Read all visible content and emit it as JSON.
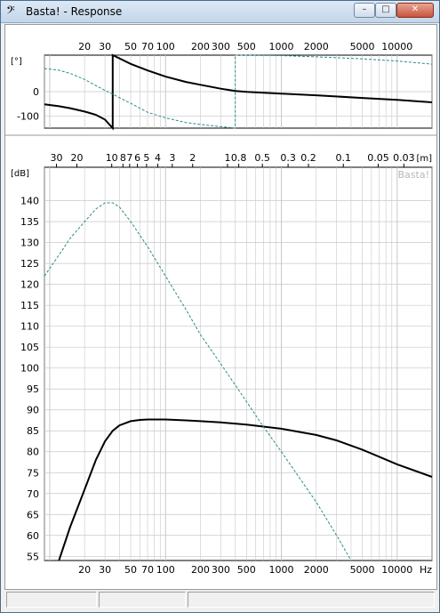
{
  "window": {
    "title": "Basta! - Response",
    "app_icon": "bass-clef-icon",
    "min_label": "–",
    "max_label": "□",
    "close_label": "✕"
  },
  "watermark": "Basta!",
  "status": {
    "panes": [
      "",
      "",
      ""
    ]
  },
  "colors": {
    "background": "#ffffff",
    "grid": "#c8c8c8",
    "axis": "#000000",
    "solid": "#000000",
    "dashed": "#2a8a8a"
  },
  "chart_data": [
    {
      "type": "line",
      "title": "",
      "ylabel": "[°]",
      "xscale": "log",
      "xlim": [
        9,
        20000
      ],
      "ylim": [
        -150,
        150
      ],
      "x_ticks": [
        20,
        30,
        50,
        70,
        100,
        200,
        300,
        500,
        1000,
        2000,
        5000,
        10000
      ],
      "x_tick_labels": [
        "20",
        "30",
        "50",
        "70",
        "100",
        "200",
        "300",
        "500",
        "1000",
        "2000",
        "5000",
        "10000"
      ],
      "y_ticks": [
        0,
        -100
      ],
      "y_tick_labels": [
        "0",
        "-100"
      ],
      "series": [
        {
          "style": "solid",
          "x": [
            9,
            12,
            15,
            20,
            25,
            30,
            35,
            35,
            40,
            50,
            70,
            100,
            150,
            200,
            300,
            400,
            500,
            1000,
            2000,
            5000,
            10000,
            20000
          ],
          "y": [
            -52,
            -60,
            -68,
            -82,
            -95,
            -115,
            -150,
            150,
            137,
            114,
            87,
            62,
            40,
            28,
            12,
            3,
            -1,
            -8,
            -15,
            -26,
            -34,
            -44
          ]
        },
        {
          "style": "dashed",
          "x": [
            9,
            12,
            15,
            20,
            25,
            30,
            35,
            40,
            50,
            70,
            100,
            150,
            200,
            300,
            400,
            400,
            500,
            1000,
            2000,
            5000,
            10000,
            20000
          ],
          "y": [
            95,
            88,
            75,
            50,
            25,
            5,
            -10,
            -25,
            -48,
            -85,
            -108,
            -127,
            -135,
            -144,
            -150,
            150,
            150,
            148,
            143,
            135,
            126,
            113
          ]
        }
      ]
    },
    {
      "type": "line",
      "title": "",
      "ylabel": "[dB]",
      "xlabel": "Hz",
      "top_axis_label": "[m]",
      "xscale": "log",
      "xlim": [
        9,
        20000
      ],
      "ylim": [
        54,
        148
      ],
      "x_ticks": [
        20,
        30,
        50,
        70,
        100,
        200,
        300,
        500,
        1000,
        2000,
        5000,
        10000
      ],
      "x_tick_labels": [
        "20",
        "30",
        "50",
        "70",
        "100",
        "200",
        "300",
        "500",
        "1000",
        "2000",
        "5000",
        "10000"
      ],
      "y_ticks": [
        55,
        60,
        65,
        70,
        75,
        80,
        85,
        90,
        95,
        100,
        105,
        110,
        115,
        120,
        125,
        130,
        135,
        140
      ],
      "y_tick_labels": [
        "55",
        "60",
        "65",
        "70",
        "75",
        "80",
        "85",
        "90",
        "95",
        "100",
        "105",
        "110",
        "115",
        "120",
        "125",
        "130",
        "135",
        "140"
      ],
      "top_ticks_m": [
        30,
        20,
        10,
        8,
        7,
        6,
        5,
        4,
        3,
        2,
        1,
        0.8,
        0.5,
        0.3,
        0.2,
        0.1,
        0.05,
        0.03
      ],
      "top_tick_labels": [
        "30",
        "20",
        "10",
        "8",
        "7",
        "6",
        "5",
        "4",
        "3",
        "2",
        "1",
        "0.8",
        "0.5",
        "0.3",
        "0.2",
        "0.1",
        "0.05",
        "0.03"
      ],
      "series": [
        {
          "style": "solid",
          "x": [
            12,
            15,
            20,
            25,
            30,
            35,
            40,
            50,
            60,
            70,
            100,
            150,
            200,
            300,
            500,
            1000,
            2000,
            3000,
            5000,
            10000,
            20000
          ],
          "y": [
            54,
            62,
            71,
            78,
            82.5,
            85,
            86.3,
            87.3,
            87.6,
            87.7,
            87.7,
            87.5,
            87.3,
            87,
            86.5,
            85.5,
            84,
            82.7,
            80.5,
            77,
            74
          ]
        },
        {
          "style": "dashed",
          "x": [
            9,
            12,
            15,
            20,
            25,
            30,
            35,
            40,
            50,
            70,
            100,
            150,
            200,
            300,
            500,
            700,
            1000,
            2000,
            3000,
            4000
          ],
          "y": [
            122,
            127,
            131,
            135,
            138,
            139.5,
            139.5,
            138.5,
            135,
            129,
            122,
            114,
            108,
            101,
            92,
            86,
            80,
            68,
            60,
            54
          ]
        }
      ]
    }
  ]
}
